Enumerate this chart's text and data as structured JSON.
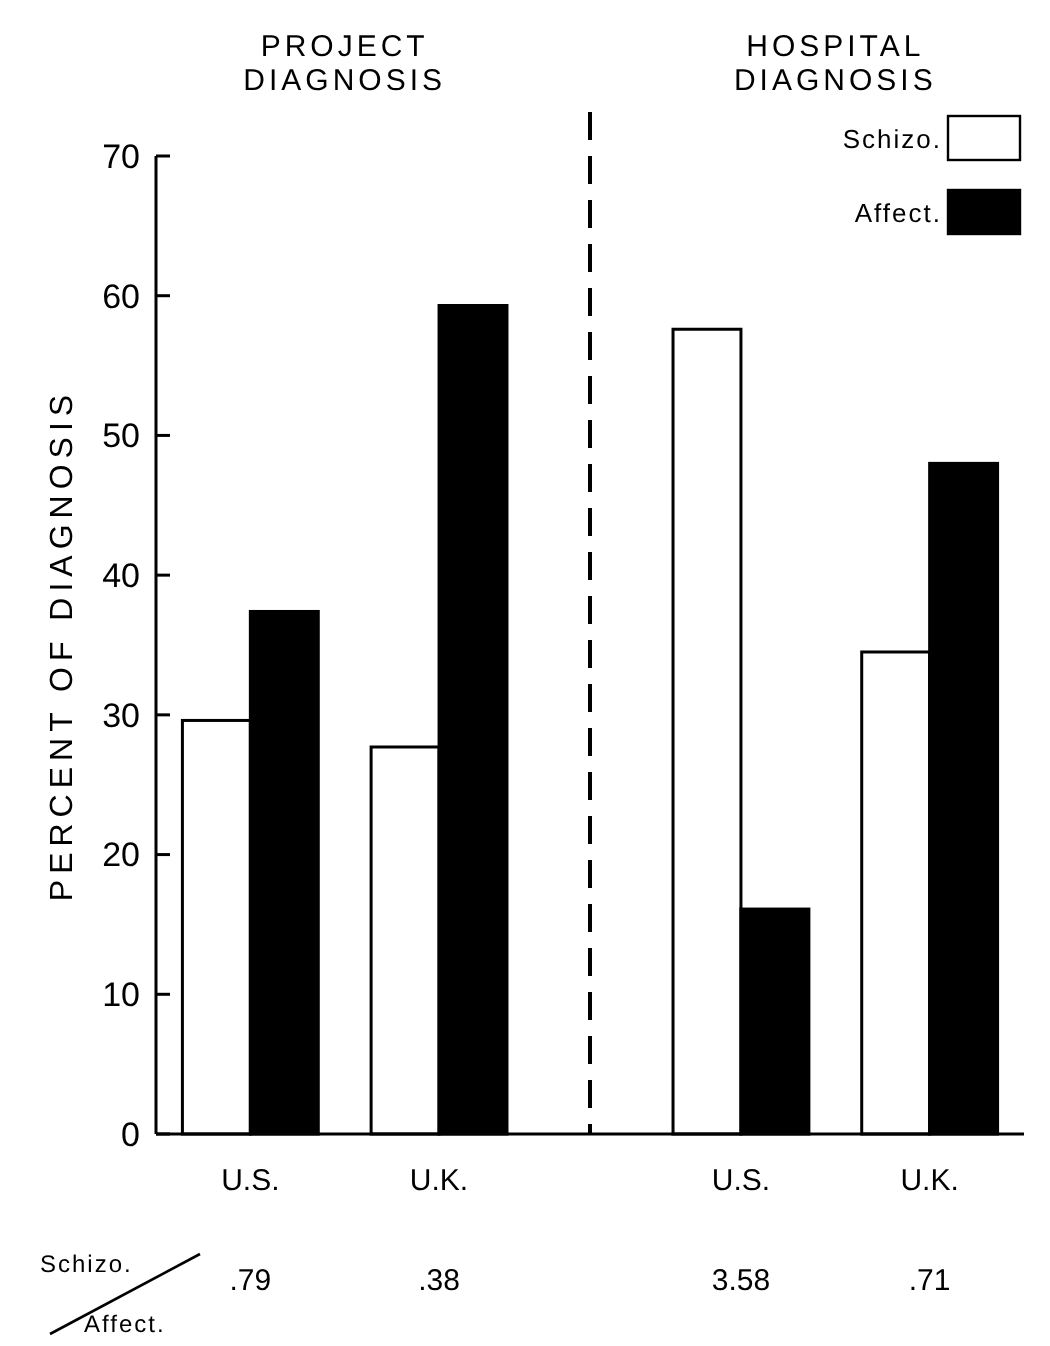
{
  "chart_data": {
    "type": "bar",
    "ylabel": "PERCENT OF DIAGNOSIS",
    "categories": [
      "U.S.",
      "U.K.",
      "U.S.",
      "U.K."
    ],
    "series": [
      {
        "name": "Schizo.",
        "color": "#ffffff",
        "values": [
          29.6,
          27.7,
          57.6,
          34.5
        ]
      },
      {
        "name": "Affect.",
        "color": "#000000",
        "values": [
          37.4,
          59.3,
          16.1,
          48.0
        ]
      }
    ],
    "ylim": [
      0,
      70
    ],
    "yticks": [
      0,
      10,
      20,
      30,
      40,
      50,
      60,
      70
    ],
    "grid": false,
    "legend": "top right",
    "annotations": [
      "PROJECT DIAGNOSIS",
      "HOSPITAL DIAGNOSIS",
      "Schizo.",
      "Affect.",
      ".79",
      ".38",
      "3.58",
      ".71"
    ]
  }
}
